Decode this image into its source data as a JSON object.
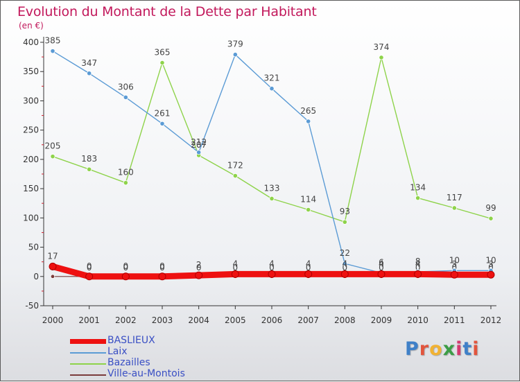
{
  "chart_data": {
    "type": "line",
    "title": "Evolution du Montant de la Dette par Habitant",
    "unit_label": "(en €)",
    "x": [
      "2000",
      "2001",
      "2002",
      "2003",
      "2004",
      "2005",
      "2006",
      "2007",
      "2008",
      "2009",
      "2010",
      "2011",
      "2012"
    ],
    "ylim": [
      -50,
      400
    ],
    "yticks": [
      -50,
      0,
      50,
      100,
      150,
      200,
      250,
      300,
      350,
      400
    ],
    "grid": false,
    "legend_position": "bottom-left",
    "series": [
      {
        "name": "BASLIEUX",
        "color": "#ee1111",
        "values": [
          17,
          0,
          0,
          0,
          2,
          4,
          4,
          4,
          4,
          4,
          4,
          3,
          3
        ],
        "labels": [
          "17",
          "0",
          "0",
          "0",
          "2",
          "4",
          "4",
          "4",
          "4",
          "4",
          "4",
          "3",
          "3"
        ]
      },
      {
        "name": "Laix",
        "color": "#5b9bd5",
        "values": [
          385,
          347,
          306,
          261,
          212,
          379,
          321,
          265,
          22,
          6,
          8,
          10,
          10
        ],
        "labels": [
          "385",
          "347",
          "306",
          "261",
          "212",
          "379",
          "321",
          "265",
          "22",
          "6",
          "8",
          "10",
          "10"
        ]
      },
      {
        "name": "Bazailles",
        "color": "#8ed34a",
        "values": [
          205,
          183,
          160,
          365,
          207,
          172,
          133,
          114,
          93,
          374,
          134,
          117,
          99
        ],
        "labels": [
          "205",
          "183",
          "160",
          "365",
          "207",
          "172",
          "133",
          "114",
          "93",
          "374",
          "134",
          "117",
          "99"
        ]
      },
      {
        "name": "Ville-au-Montois",
        "color": "#7a3b3b",
        "values": [
          0,
          0,
          0,
          0,
          0,
          0,
          0,
          0,
          0,
          0,
          0,
          0,
          0
        ],
        "labels": [
          "0",
          "0",
          "0",
          "0",
          "0",
          "0",
          "0",
          "0",
          "0",
          "0",
          "0",
          "0",
          "0"
        ]
      }
    ]
  },
  "logo": {
    "letters": [
      "P",
      "r",
      "o",
      "x",
      "i",
      "t",
      "i"
    ]
  }
}
